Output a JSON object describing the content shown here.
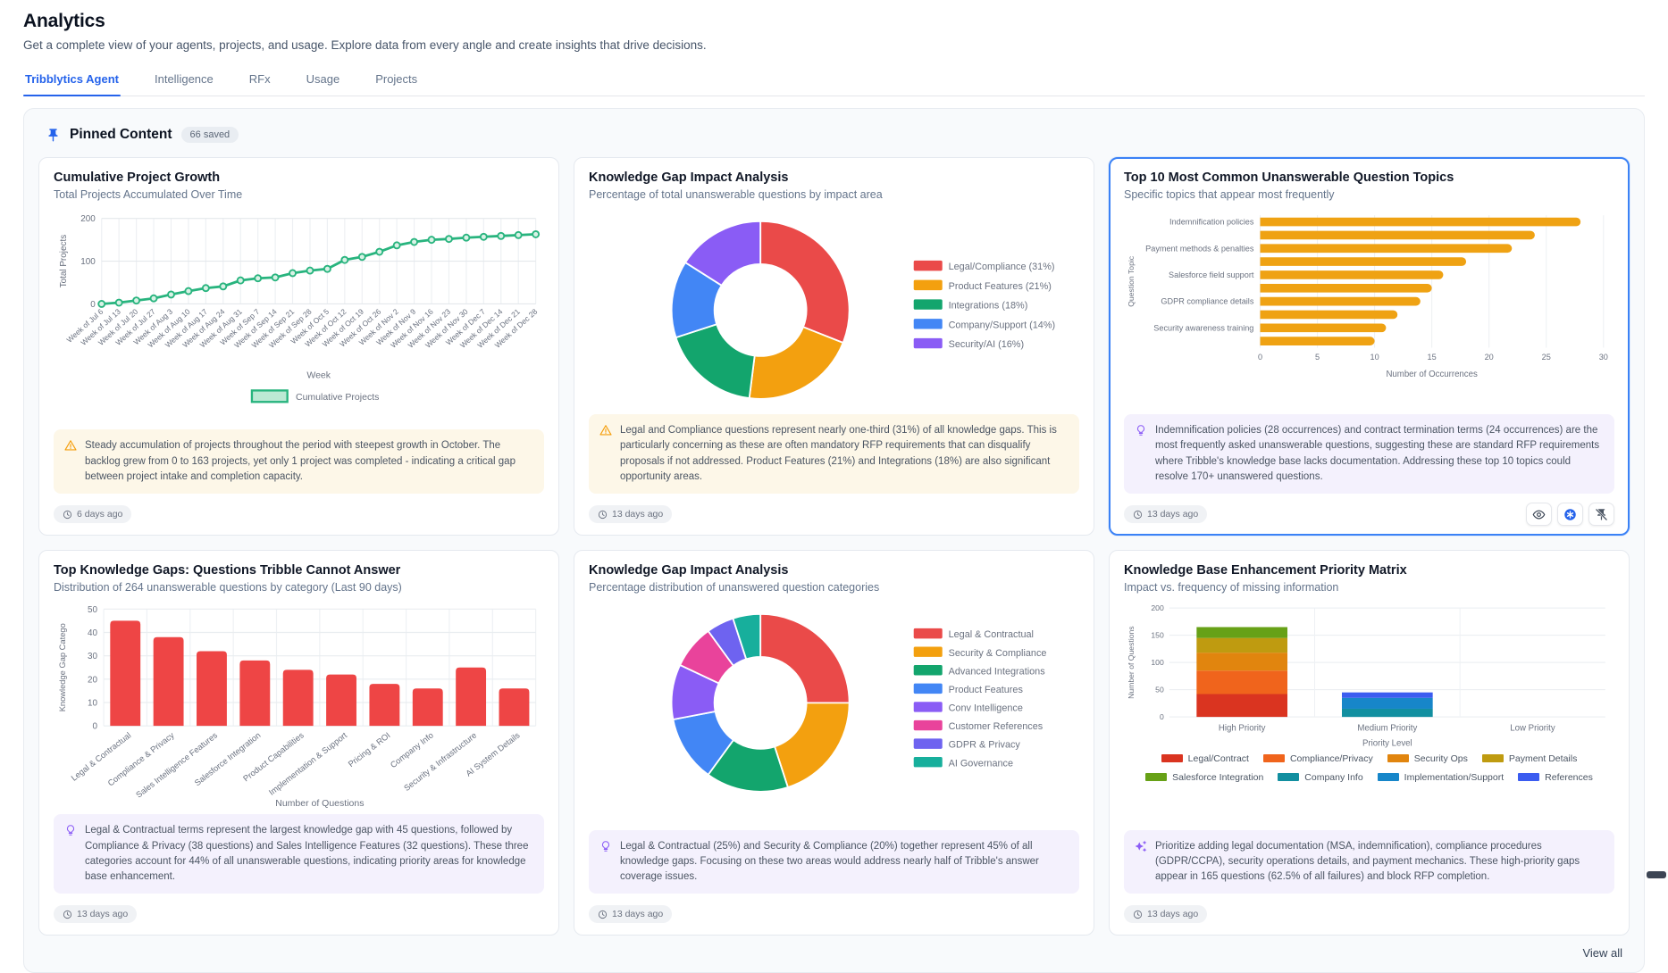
{
  "page": {
    "title": "Analytics",
    "subtitle": "Get a complete view of your agents, projects, and usage. Explore data from every angle and create insights that drive decisions.",
    "tabs": [
      {
        "label": "Tribblytics Agent",
        "active": true
      },
      {
        "label": "Intelligence",
        "active": false
      },
      {
        "label": "RFx",
        "active": false
      },
      {
        "label": "Usage",
        "active": false
      },
      {
        "label": "Projects",
        "active": false
      }
    ],
    "view_all_label": "View all"
  },
  "pinned": {
    "title": "Pinned Content",
    "badge": "66 saved",
    "pin_color": "#2563eb"
  },
  "cards": [
    {
      "title": "Cumulative Project Growth",
      "subtitle": "Total Projects Accumulated Over Time",
      "timestamp": "6 days ago",
      "insight": {
        "type": "warning",
        "icon": "warning-triangle-icon",
        "text": "Steady accumulation of projects throughout the period with steepest growth in October. The backlog grew from 0 to 163 projects, yet only 1 project was completed - indicating a critical gap between project intake and completion capacity."
      },
      "chart_data": {
        "type": "line",
        "x": [
          "Week of Jul 6",
          "Week of Jul 13",
          "Week of Jul 20",
          "Week of Jul 27",
          "Week of Aug 3",
          "Week of Aug 10",
          "Week of Aug 17",
          "Week of Aug 24",
          "Week of Aug 31",
          "Week of Sep 7",
          "Week of Sep 14",
          "Week of Sep 21",
          "Week of Sep 28",
          "Week of Oct 5",
          "Week of Oct 12",
          "Week of Oct 19",
          "Week of Oct 26",
          "Week of Nov 2",
          "Week of Nov 9",
          "Week of Nov 16",
          "Week of Nov 23",
          "Week of Nov 30",
          "Week of Dec 7",
          "Week of Dec 14",
          "Week of Dec 21",
          "Week of Dec 28"
        ],
        "series": [
          {
            "name": "Cumulative Projects",
            "color": "#28b47e",
            "fill": "#bce9d4",
            "values": [
              0,
              3,
              8,
              13,
              22,
              30,
              37,
              41,
              55,
              60,
              62,
              72,
              78,
              82,
              103,
              110,
              122,
              137,
              145,
              150,
              152,
              155,
              157,
              159,
              161,
              163
            ]
          }
        ],
        "xlabel": "Week",
        "ylabel": "Total Projects",
        "ylim": [
          0,
          200
        ],
        "yticks": [
          0,
          100,
          200
        ],
        "legend": [
          {
            "label": "Cumulative Projects",
            "color": "#28b47e"
          }
        ]
      }
    },
    {
      "title": "Knowledge Gap Impact Analysis",
      "subtitle": "Percentage of total unanswerable questions by impact area",
      "timestamp": "13 days ago",
      "insight": {
        "type": "warning",
        "icon": "warning-triangle-icon",
        "text": "Legal and Compliance questions represent nearly one-third (31%) of all knowledge gaps. This is particularly concerning as these are often mandatory RFP requirements that can disqualify proposals if not addressed. Product Features (21%) and Integrations (18%) are also significant opportunity areas."
      },
      "chart_data": {
        "type": "donut",
        "segments": [
          {
            "label": "Legal/Compliance (31%)",
            "value": 31,
            "color": "#ea4a49"
          },
          {
            "label": "Product Features (21%)",
            "value": 21,
            "color": "#f3a00f"
          },
          {
            "label": "Integrations (18%)",
            "value": 18,
            "color": "#13a56d"
          },
          {
            "label": "Company/Support (14%)",
            "value": 14,
            "color": "#4286f5"
          },
          {
            "label": "Security/AI (16%)",
            "value": 16,
            "color": "#8a5cf5"
          }
        ],
        "legend_position": "right"
      }
    },
    {
      "title": "Top 10 Most Common Unanswerable Question Topics",
      "subtitle": "Specific topics that appear most frequently",
      "timestamp": "13 days ago",
      "selected": true,
      "insight": {
        "type": "insight",
        "icon": "lightbulb-icon",
        "text": "Indemnification policies (28 occurrences) and contract termination terms (24 occurrences) are the most frequently asked unanswerable questions, suggesting these are standard RFP requirements where Tribble's knowledge base lacks documentation. Addressing these top 10 topics could resolve 170+ unanswered questions."
      },
      "actions": [
        {
          "icon": "eye-icon"
        },
        {
          "icon": "tribble-logo-icon"
        },
        {
          "icon": "pin-off-icon"
        }
      ],
      "chart_data": {
        "type": "hbar",
        "labels": [
          "Indemnification policies",
          "",
          "Payment methods & penalties",
          "",
          "Salesforce field support",
          "",
          "GDPR compliance details",
          "",
          "Security awareness training",
          ""
        ],
        "values": [
          28,
          24,
          22,
          18,
          16,
          15,
          14,
          12,
          11,
          10
        ],
        "color": "#efa213",
        "xlabel": "Number of Occurrences",
        "ylabel": "Question Topic",
        "xlim": [
          0,
          30
        ],
        "xticks": [
          0,
          5,
          10,
          15,
          20,
          25,
          30
        ]
      }
    },
    {
      "title": "Top Knowledge Gaps: Questions Tribble Cannot Answer",
      "subtitle": "Distribution of 264 unanswerable questions by category (Last 90 days)",
      "timestamp": "13 days ago",
      "insight": {
        "type": "insight",
        "icon": "lightbulb-icon",
        "text": "Legal & Contractual terms represent the largest knowledge gap with 45 questions, followed by Compliance & Privacy (38 questions) and Sales Intelligence Features (32 questions). These three categories account for 44% of all unanswerable questions, indicating priority areas for knowledge base enhancement."
      },
      "chart_data": {
        "type": "bar",
        "categories": [
          "Legal & Contractual",
          "Compliance & Privacy",
          "Sales Intelligence Features",
          "Salesforce Integration",
          "Product Capabilities",
          "Implementation & Support",
          "Pricing & ROI",
          "Company Info",
          "Security & Infrastructure",
          "AI System Details"
        ],
        "values": [
          45,
          38,
          32,
          28,
          24,
          22,
          18,
          16,
          25,
          16
        ],
        "color": "#ee4545",
        "xlabel": "Number of Questions",
        "ylabel": "Knowledge Gap Catego",
        "ylim": [
          0,
          50
        ],
        "yticks": [
          0,
          10,
          20,
          30,
          40,
          50
        ]
      }
    },
    {
      "title": "Knowledge Gap Impact Analysis",
      "subtitle": "Percentage distribution of unanswered question categories",
      "timestamp": "13 days ago",
      "insight": {
        "type": "insight",
        "icon": "lightbulb-icon",
        "text": "Legal & Contractual (25%) and Security & Compliance (20%) together represent 45% of all knowledge gaps. Focusing on these two areas would address nearly half of Tribble's answer coverage issues."
      },
      "chart_data": {
        "type": "donut",
        "segments": [
          {
            "label": "Legal & Contractual",
            "value": 25,
            "color": "#ea4a49"
          },
          {
            "label": "Security & Compliance",
            "value": 20,
            "color": "#f3a00f"
          },
          {
            "label": "Advanced Integrations",
            "value": 15,
            "color": "#13a56d"
          },
          {
            "label": "Product Features",
            "value": 12,
            "color": "#4286f5"
          },
          {
            "label": "Conv Intelligence",
            "value": 10,
            "color": "#8a5cf5"
          },
          {
            "label": "Customer References",
            "value": 8,
            "color": "#e9439b"
          },
          {
            "label": "GDPR & Privacy",
            "value": 5,
            "color": "#6e63f0"
          },
          {
            "label": "AI Governance",
            "value": 5,
            "color": "#17af9c"
          }
        ],
        "legend_position": "right"
      }
    },
    {
      "title": "Knowledge Base Enhancement Priority Matrix",
      "subtitle": "Impact vs. frequency of missing information",
      "timestamp": "13 days ago",
      "insight": {
        "type": "insight",
        "icon": "sparkles-icon",
        "text": "Prioritize adding legal documentation (MSA, indemnification), compliance procedures (GDPR/CCPA), security operations details, and payment mechanics. These high-priority gaps appear in 165 questions (62.5% of all failures) and block RFP completion."
      },
      "chart_data": {
        "type": "stacked_bar",
        "categories": [
          "High Priority",
          "Medium Priority",
          "Low Priority"
        ],
        "series": [
          {
            "name": "Legal/Contract",
            "color": "#da3420",
            "values": [
              42,
              0,
              0
            ]
          },
          {
            "name": "Compliance/Privacy",
            "color": "#f0641c",
            "values": [
              43,
              0,
              0
            ]
          },
          {
            "name": "Security Ops",
            "color": "#e1850e",
            "values": [
              33,
              0,
              0
            ]
          },
          {
            "name": "Payment Details",
            "color": "#bf9b10",
            "values": [
              27,
              0,
              0
            ]
          },
          {
            "name": "Salesforce Integration",
            "color": "#67a117",
            "values": [
              20,
              0,
              0
            ]
          },
          {
            "name": "Company Info",
            "color": "#128fa0",
            "values": [
              0,
              15,
              0
            ]
          },
          {
            "name": "Implementation/Support",
            "color": "#1786c9",
            "values": [
              0,
              20,
              0
            ]
          },
          {
            "name": "References",
            "color": "#3b5cf0",
            "values": [
              0,
              10,
              0
            ]
          }
        ],
        "xlabel": "Priority Level",
        "ylabel": "Number of Questions",
        "ylim": [
          0,
          200
        ],
        "yticks": [
          0,
          50,
          100,
          150,
          200
        ],
        "legend_rows": [
          [
            0,
            1,
            2,
            3
          ],
          [
            4,
            5,
            6,
            7
          ]
        ]
      }
    }
  ]
}
